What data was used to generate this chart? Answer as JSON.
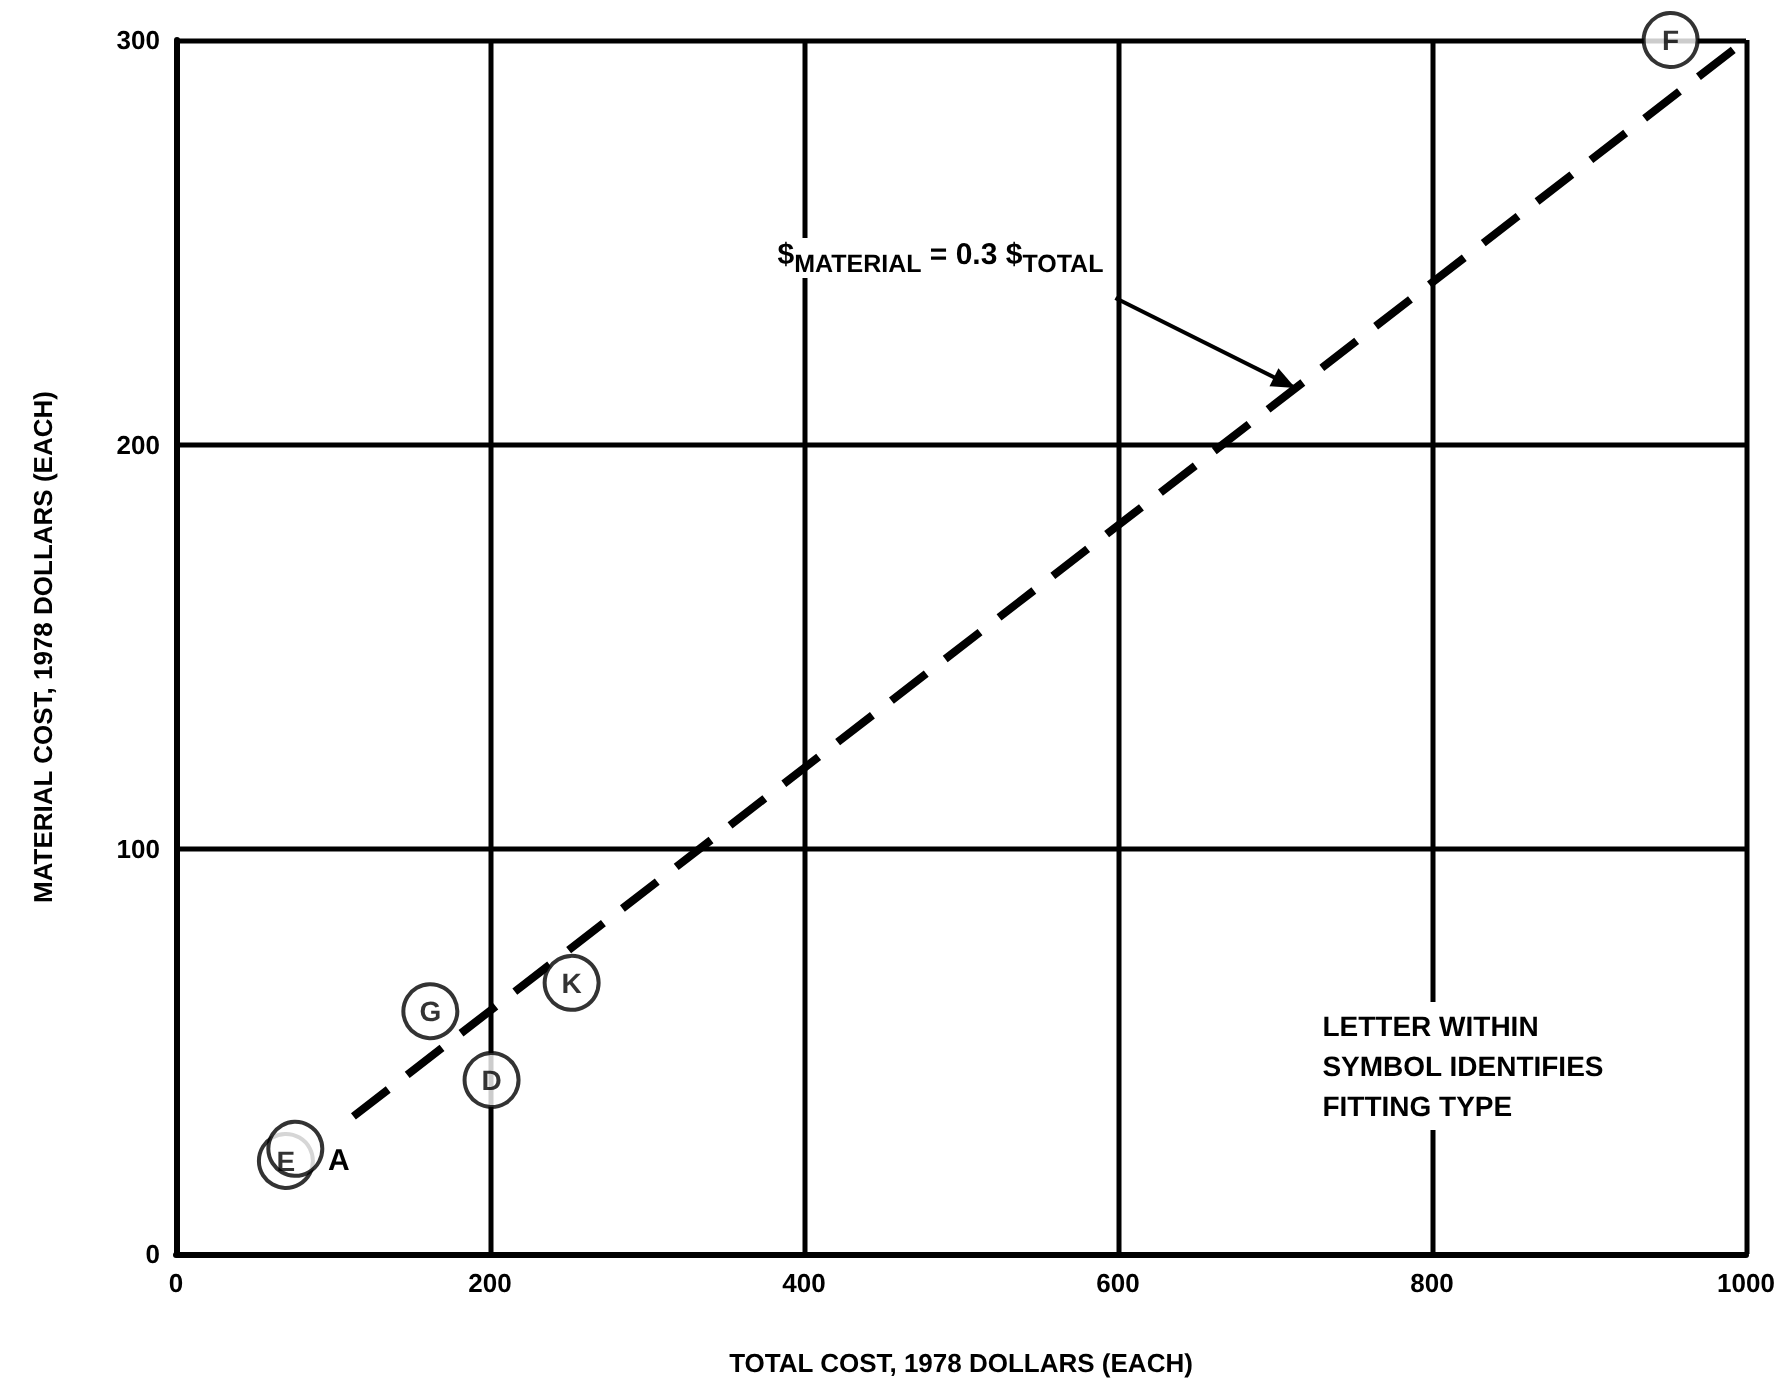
{
  "chart_data": {
    "type": "scatter",
    "xlabel": "TOTAL COST, 1978 DOLLARS (EACH)",
    "ylabel": "MATERIAL COST, 1978 DOLLARS (EACH)",
    "xlim": [
      0,
      1000
    ],
    "xticks": [
      0,
      200,
      400,
      600,
      800,
      1000
    ],
    "ylim": [
      0,
      300
    ],
    "yticks": [
      0,
      100,
      200,
      300
    ],
    "grid": true,
    "marker": "circle",
    "series": [
      {
        "color": "#000000",
        "x": [
          70,
          76,
          162,
          201,
          252,
          952
        ],
        "values": [
          23,
          26,
          60,
          43,
          67,
          300
        ],
        "value_labels": [
          "E",
          null,
          "G",
          "D",
          "K",
          "F"
        ]
      },
      {
        "type": "line",
        "color": "#000000",
        "line_style": "dashed",
        "marker": "none",
        "x": [
          113,
          1000
        ],
        "values": [
          34,
          300
        ]
      }
    ],
    "annotations": [
      {
        "text": "$$_{MATERIAL}$ = 0.3 $$_{TOTAL}$",
        "x": 713,
        "y": 214
      },
      {
        "text": "A",
        "x": 96,
        "y": 27
      },
      "LETTER WITHIN\nSYMBOL IDENTIFIES\nFITTING TYPE"
    ]
  }
}
